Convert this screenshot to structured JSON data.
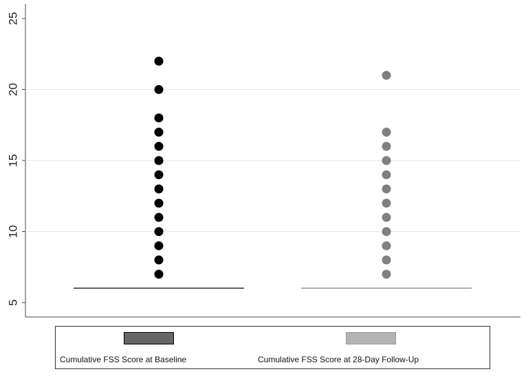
{
  "chart_data": {
    "type": "scatter",
    "title": "",
    "xlabel": "",
    "ylabel": "",
    "ylim": [
      5,
      25
    ],
    "yticks": [
      5,
      10,
      15,
      20,
      25
    ],
    "grid": true,
    "legend_position": "bottom",
    "series": [
      {
        "name": "Cumulative FSS Score at Baseline",
        "color": "#000000",
        "legend_color": "#666666",
        "baseline_color": "#000000",
        "values": [
          7,
          8,
          9,
          10,
          11,
          12,
          13,
          14,
          15,
          16,
          17,
          18,
          20,
          22
        ]
      },
      {
        "name": "Cumulative FSS Score at 28-Day Follow-Up",
        "color": "#808080",
        "legend_color": "#b3b3b3",
        "baseline_color": "#808080",
        "values": [
          7,
          8,
          9,
          10,
          11,
          12,
          13,
          14,
          15,
          16,
          17,
          21
        ]
      }
    ]
  }
}
